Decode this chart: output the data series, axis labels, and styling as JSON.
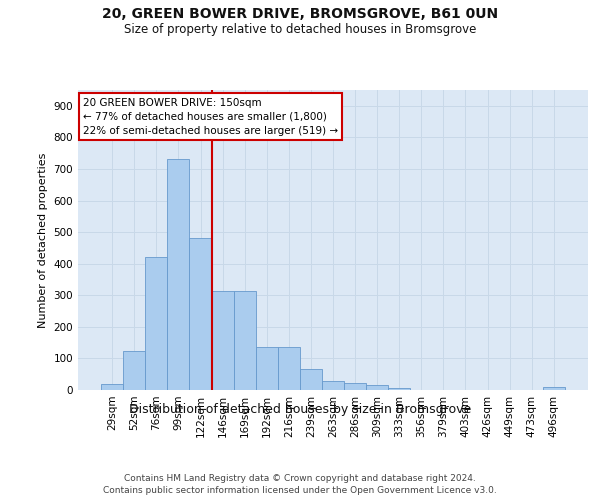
{
  "title1": "20, GREEN BOWER DRIVE, BROMSGROVE, B61 0UN",
  "title2": "Size of property relative to detached houses in Bromsgrove",
  "xlabel": "Distribution of detached houses by size in Bromsgrove",
  "ylabel": "Number of detached properties",
  "footer": "Contains HM Land Registry data © Crown copyright and database right 2024.\nContains public sector information licensed under the Open Government Licence v3.0.",
  "categories": [
    "29sqm",
    "52sqm",
    "76sqm",
    "99sqm",
    "122sqm",
    "146sqm",
    "169sqm",
    "192sqm",
    "216sqm",
    "239sqm",
    "263sqm",
    "286sqm",
    "309sqm",
    "333sqm",
    "356sqm",
    "379sqm",
    "403sqm",
    "426sqm",
    "449sqm",
    "473sqm",
    "496sqm"
  ],
  "values": [
    18,
    125,
    420,
    730,
    480,
    315,
    315,
    135,
    135,
    65,
    28,
    22,
    15,
    5,
    0,
    0,
    0,
    0,
    0,
    0,
    8
  ],
  "bar_color": "#aaccee",
  "bar_edge_color": "#6699cc",
  "vline_color": "#cc0000",
  "vline_index": 4.5,
  "annotation_text": "20 GREEN BOWER DRIVE: 150sqm\n← 77% of detached houses are smaller (1,800)\n22% of semi-detached houses are larger (519) →",
  "annotation_box_facecolor": "#ffffff",
  "annotation_box_edgecolor": "#cc0000",
  "grid_color": "#c8d8e8",
  "plot_bg_color": "#dce8f5",
  "figure_bg_color": "#ffffff",
  "ylim": [
    0,
    950
  ],
  "yticks": [
    0,
    100,
    200,
    300,
    400,
    500,
    600,
    700,
    800,
    900
  ],
  "title1_fontsize": 10,
  "title2_fontsize": 8.5,
  "xlabel_fontsize": 9,
  "ylabel_fontsize": 8,
  "tick_fontsize": 7.5,
  "annotation_fontsize": 7.5,
  "footer_fontsize": 6.5
}
